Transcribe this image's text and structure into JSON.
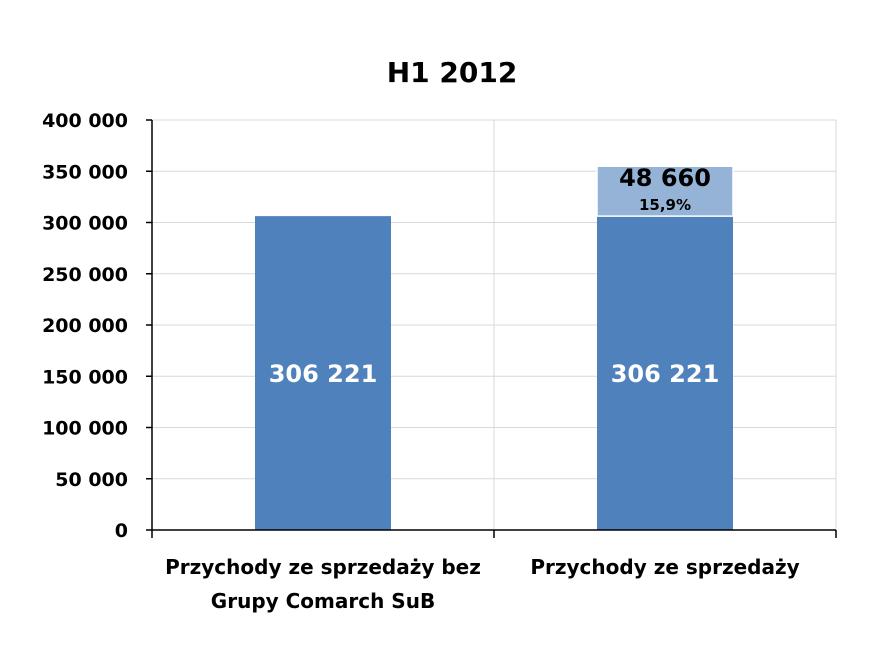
{
  "chart_data": {
    "type": "bar",
    "stacked": true,
    "title": "H1 2012",
    "categories": [
      "Przychody ze sprzedaży bez Grupy Comarch SuB",
      "Przychody ze sprzedaży"
    ],
    "category_lines": [
      [
        "Przychody ze sprzedaży bez",
        "Grupy Comarch SuB"
      ],
      [
        "Przychody ze sprzedaży"
      ]
    ],
    "series": [
      {
        "values": [
          306221,
          306221
        ],
        "labels": [
          "306 221",
          "306 221"
        ],
        "color": "#4f81bd"
      },
      {
        "values": [
          0,
          48660
        ],
        "labels": [
          "",
          "48 660"
        ],
        "sublabels": [
          "",
          "15,9%"
        ],
        "color": "#95b3d7"
      }
    ],
    "ylim": [
      0,
      400000
    ],
    "yticks": [
      0,
      50000,
      100000,
      150000,
      200000,
      250000,
      300000,
      350000,
      400000
    ],
    "ytick_labels": [
      "0",
      "50 000",
      "100 000",
      "150 000",
      "200 000",
      "250 000",
      "300 000",
      "350 000",
      "400 000"
    ],
    "grid": true,
    "colors": {
      "grid": "#d9d9d9",
      "axis": "#000000",
      "inner_label": "#ffffff",
      "outer_label": "#000000"
    }
  }
}
